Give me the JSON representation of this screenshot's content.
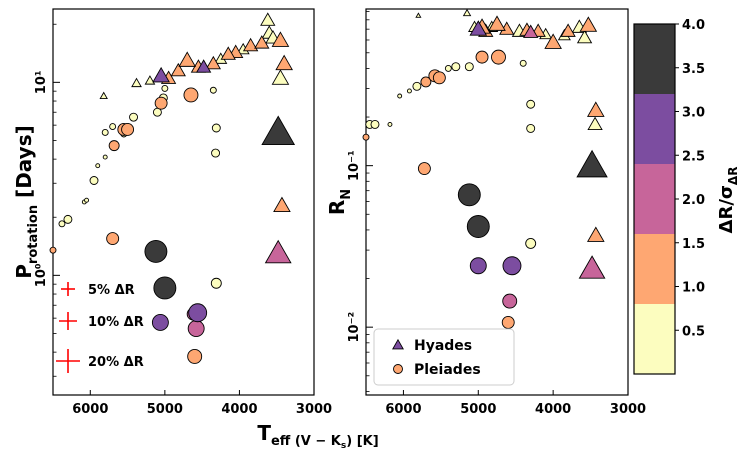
{
  "chart_data": [
    {
      "type": "scatter",
      "panel": "left",
      "xlabel": "T",
      "xlabel_sub": "eff (V − K",
      "xlabel_subsub": "s",
      "xlabel_tail": ") [K]",
      "ylabel": "P",
      "ylabel_sub": "rotation",
      "ylabel_tail": " [Days]",
      "xlim": [
        6500,
        3000
      ],
      "ylim_log10": [
        -0.62,
        1.38
      ],
      "y_scale": "log",
      "x_ticks": [
        6000,
        5000,
        4000,
        3000
      ],
      "x_tick_labels": [
        "6000",
        "5000",
        "4000",
        "3000"
      ],
      "y_ticks": [
        1,
        10
      ],
      "y_tick_labels": [
        "10⁰",
        "10¹"
      ],
      "series": [
        {
          "marker": "triangle",
          "points": [
            {
              "x": 5820,
              "y": 8.5,
              "c": 0.6,
              "s": 3
            },
            {
              "x": 5380,
              "y": 9.9,
              "c": 0.4,
              "s": 4
            },
            {
              "x": 5200,
              "y": 10.2,
              "c": 0.5,
              "s": 4
            },
            {
              "x": 5050,
              "y": 10.8,
              "c": 3.0,
              "s": 7
            },
            {
              "x": 4950,
              "y": 10.5,
              "c": 1.5,
              "s": 6
            },
            {
              "x": 4820,
              "y": 11.5,
              "c": 1.0,
              "s": 6
            },
            {
              "x": 4700,
              "y": 13.0,
              "c": 1.5,
              "s": 7
            },
            {
              "x": 4550,
              "y": 12.0,
              "c": 1.2,
              "s": 6
            },
            {
              "x": 4480,
              "y": 12.0,
              "c": 2.5,
              "s": 6
            },
            {
              "x": 4350,
              "y": 12.5,
              "c": 1.2,
              "s": 6
            },
            {
              "x": 4250,
              "y": 13.2,
              "c": 0.4,
              "s": 5
            },
            {
              "x": 4150,
              "y": 14.0,
              "c": 1.4,
              "s": 6
            },
            {
              "x": 4050,
              "y": 14.3,
              "c": 1.3,
              "s": 6
            },
            {
              "x": 3950,
              "y": 14.8,
              "c": 0.5,
              "s": 5
            },
            {
              "x": 3850,
              "y": 15.5,
              "c": 1.0,
              "s": 6
            },
            {
              "x": 3700,
              "y": 16.0,
              "c": 1.3,
              "s": 6
            },
            {
              "x": 3600,
              "y": 18.0,
              "c": 0.4,
              "s": 6
            },
            {
              "x": 3550,
              "y": 17.0,
              "c": 0.5,
              "s": 6
            },
            {
              "x": 3620,
              "y": 21.0,
              "c": 0.5,
              "s": 6
            },
            {
              "x": 3450,
              "y": 16.5,
              "c": 1.2,
              "s": 7
            },
            {
              "x": 3400,
              "y": 12.5,
              "c": 1.3,
              "s": 7
            },
            {
              "x": 3450,
              "y": 10.5,
              "c": 0.5,
              "s": 7
            },
            {
              "x": 3480,
              "y": 5.5,
              "c": 3.9,
              "s": 14
            },
            {
              "x": 3430,
              "y": 2.3,
              "c": 1.3,
              "s": 7
            },
            {
              "x": 3480,
              "y": 1.3,
              "c": 2.3,
              "s": 11
            }
          ]
        },
        {
          "marker": "circle",
          "points": [
            {
              "x": 6500,
              "y": 1.35,
              "c": 1.2,
              "s": 3
            },
            {
              "x": 6380,
              "y": 1.85,
              "c": 0.4,
              "s": 3
            },
            {
              "x": 6300,
              "y": 1.95,
              "c": 0.4,
              "s": 4
            },
            {
              "x": 6080,
              "y": 2.4,
              "c": 0.5,
              "s": 2
            },
            {
              "x": 6050,
              "y": 2.45,
              "c": 0.5,
              "s": 2
            },
            {
              "x": 5950,
              "y": 3.1,
              "c": 0.4,
              "s": 4
            },
            {
              "x": 5900,
              "y": 3.7,
              "c": 0.6,
              "s": 2
            },
            {
              "x": 5800,
              "y": 4.1,
              "c": 0.5,
              "s": 2
            },
            {
              "x": 5680,
              "y": 4.7,
              "c": 1.3,
              "s": 5
            },
            {
              "x": 5800,
              "y": 5.5,
              "c": 0.4,
              "s": 3
            },
            {
              "x": 5700,
              "y": 5.9,
              "c": 0.5,
              "s": 3
            },
            {
              "x": 5550,
              "y": 5.7,
              "c": 1.2,
              "s": 6
            },
            {
              "x": 5500,
              "y": 5.7,
              "c": 1.2,
              "s": 6
            },
            {
              "x": 5550,
              "y": 5.4,
              "c": 0.5,
              "s": 3
            },
            {
              "x": 5420,
              "y": 6.6,
              "c": 0.5,
              "s": 4
            },
            {
              "x": 5100,
              "y": 7.0,
              "c": 0.5,
              "s": 4
            },
            {
              "x": 5050,
              "y": 7.8,
              "c": 1.3,
              "s": 6
            },
            {
              "x": 5020,
              "y": 8.3,
              "c": 0.4,
              "s": 4
            },
            {
              "x": 5000,
              "y": 9.3,
              "c": 0.4,
              "s": 3
            },
            {
              "x": 4650,
              "y": 8.6,
              "c": 1.3,
              "s": 7
            },
            {
              "x": 4350,
              "y": 9.1,
              "c": 0.4,
              "s": 3
            },
            {
              "x": 4310,
              "y": 5.8,
              "c": 0.4,
              "s": 4
            },
            {
              "x": 4320,
              "y": 4.3,
              "c": 0.4,
              "s": 4
            },
            {
              "x": 5700,
              "y": 1.55,
              "c": 1.3,
              "s": 6
            },
            {
              "x": 5120,
              "y": 1.33,
              "c": 3.9,
              "s": 11
            },
            {
              "x": 5000,
              "y": 0.86,
              "c": 3.9,
              "s": 11
            },
            {
              "x": 5060,
              "y": 0.57,
              "c": 3.0,
              "s": 8
            },
            {
              "x": 4560,
              "y": 0.64,
              "c": 3.0,
              "s": 9
            },
            {
              "x": 4620,
              "y": 0.63,
              "c": 2.3,
              "s": 6
            },
            {
              "x": 4580,
              "y": 0.53,
              "c": 2.3,
              "s": 8
            },
            {
              "x": 4600,
              "y": 0.38,
              "c": 1.2,
              "s": 7
            },
            {
              "x": 4310,
              "y": 0.91,
              "c": 0.4,
              "s": 5
            }
          ]
        }
      ],
      "annotations": [
        {
          "label": "5% ΔR",
          "size": 7
        },
        {
          "label": "10% ΔR",
          "size": 9
        },
        {
          "label": "20% ΔR",
          "size": 12
        }
      ]
    },
    {
      "type": "scatter",
      "panel": "right",
      "xlim": [
        6500,
        3000
      ],
      "ylim_log10": [
        -2.42,
        -0.03
      ],
      "y_scale": "log",
      "ylabel": "R",
      "ylabel_sub": "N",
      "x_ticks": [
        6000,
        5000,
        4000,
        3000
      ],
      "x_tick_labels": [
        "6000",
        "5000",
        "4000",
        "3000"
      ],
      "y_ticks": [
        0.01,
        0.1
      ],
      "y_tick_labels": [
        "10⁻²",
        "10⁻¹"
      ],
      "legend": {
        "placement": "lower-left",
        "entries": [
          {
            "label": "Hyades",
            "marker": "triangle",
            "c": 2.7
          },
          {
            "label": "Pleiades",
            "marker": "circle",
            "c": 1.3
          }
        ]
      },
      "series": [
        {
          "name": "Hyades",
          "marker": "triangle",
          "points": [
            {
              "x": 5800,
              "y": 0.85,
              "c": 0.6,
              "s": 2
            },
            {
              "x": 5150,
              "y": 0.88,
              "c": 0.4,
              "s": 3
            },
            {
              "x": 5050,
              "y": 0.72,
              "c": 0.5,
              "s": 5
            },
            {
              "x": 5000,
              "y": 0.7,
              "c": 3.0,
              "s": 7
            },
            {
              "x": 4950,
              "y": 0.72,
              "c": 1.4,
              "s": 7
            },
            {
              "x": 4900,
              "y": 0.68,
              "c": 1.0,
              "s": 6
            },
            {
              "x": 4820,
              "y": 0.72,
              "c": 0.5,
              "s": 5
            },
            {
              "x": 4750,
              "y": 0.75,
              "c": 1.5,
              "s": 7
            },
            {
              "x": 4620,
              "y": 0.7,
              "c": 1.2,
              "s": 6
            },
            {
              "x": 4450,
              "y": 0.68,
              "c": 0.5,
              "s": 6
            },
            {
              "x": 4350,
              "y": 0.69,
              "c": 1.2,
              "s": 6
            },
            {
              "x": 4300,
              "y": 0.67,
              "c": 2.2,
              "s": 6
            },
            {
              "x": 4200,
              "y": 0.68,
              "c": 1.2,
              "s": 6
            },
            {
              "x": 4100,
              "y": 0.65,
              "c": 0.5,
              "s": 5
            },
            {
              "x": 4000,
              "y": 0.58,
              "c": 1.3,
              "s": 7
            },
            {
              "x": 3850,
              "y": 0.64,
              "c": 0.5,
              "s": 5
            },
            {
              "x": 3800,
              "y": 0.68,
              "c": 1.0,
              "s": 6
            },
            {
              "x": 3650,
              "y": 0.72,
              "c": 0.4,
              "s": 6
            },
            {
              "x": 3580,
              "y": 0.62,
              "c": 0.5,
              "s": 6
            },
            {
              "x": 3530,
              "y": 0.74,
              "c": 1.3,
              "s": 7
            },
            {
              "x": 3430,
              "y": 0.22,
              "c": 1.3,
              "s": 7
            },
            {
              "x": 3440,
              "y": 0.18,
              "c": 0.5,
              "s": 6
            },
            {
              "x": 3480,
              "y": 0.1,
              "c": 3.9,
              "s": 13
            },
            {
              "x": 3430,
              "y": 0.037,
              "c": 1.3,
              "s": 7
            },
            {
              "x": 3480,
              "y": 0.023,
              "c": 2.3,
              "s": 11
            }
          ]
        },
        {
          "name": "Pleiades",
          "marker": "circle",
          "points": [
            {
              "x": 6500,
              "y": 0.15,
              "c": 1.2,
              "s": 3
            },
            {
              "x": 6450,
              "y": 0.18,
              "c": 0.4,
              "s": 4
            },
            {
              "x": 6380,
              "y": 0.18,
              "c": 0.4,
              "s": 4
            },
            {
              "x": 6180,
              "y": 0.18,
              "c": 0.5,
              "s": 2
            },
            {
              "x": 6050,
              "y": 0.27,
              "c": 0.5,
              "s": 2
            },
            {
              "x": 5920,
              "y": 0.29,
              "c": 0.5,
              "s": 2
            },
            {
              "x": 5820,
              "y": 0.31,
              "c": 0.4,
              "s": 4
            },
            {
              "x": 5700,
              "y": 0.33,
              "c": 1.2,
              "s": 5
            },
            {
              "x": 5580,
              "y": 0.36,
              "c": 1.2,
              "s": 6
            },
            {
              "x": 5520,
              "y": 0.35,
              "c": 1.2,
              "s": 6
            },
            {
              "x": 5400,
              "y": 0.4,
              "c": 0.5,
              "s": 3
            },
            {
              "x": 5300,
              "y": 0.41,
              "c": 0.4,
              "s": 4
            },
            {
              "x": 5120,
              "y": 0.41,
              "c": 0.5,
              "s": 4
            },
            {
              "x": 4950,
              "y": 0.47,
              "c": 1.3,
              "s": 6
            },
            {
              "x": 4730,
              "y": 0.47,
              "c": 1.3,
              "s": 7
            },
            {
              "x": 4400,
              "y": 0.43,
              "c": 0.4,
              "s": 3
            },
            {
              "x": 4300,
              "y": 0.24,
              "c": 0.4,
              "s": 4
            },
            {
              "x": 4300,
              "y": 0.17,
              "c": 0.4,
              "s": 4
            },
            {
              "x": 5720,
              "y": 0.096,
              "c": 1.3,
              "s": 6
            },
            {
              "x": 5120,
              "y": 0.066,
              "c": 3.9,
              "s": 11
            },
            {
              "x": 5000,
              "y": 0.042,
              "c": 3.9,
              "s": 11
            },
            {
              "x": 5000,
              "y": 0.024,
              "c": 3.0,
              "s": 8
            },
            {
              "x": 4550,
              "y": 0.024,
              "c": 3.0,
              "s": 9
            },
            {
              "x": 4580,
              "y": 0.024,
              "c": 2.3,
              "s": 6
            },
            {
              "x": 4580,
              "y": 0.0145,
              "c": 2.3,
              "s": 7
            },
            {
              "x": 4600,
              "y": 0.0107,
              "c": 1.2,
              "s": 6
            },
            {
              "x": 4300,
              "y": 0.033,
              "c": 0.4,
              "s": 5
            }
          ]
        }
      ]
    }
  ],
  "colorbar": {
    "label": "ΔR/σ",
    "label_sub": "ΔR",
    "range": [
      0,
      4.0
    ],
    "ticks": [
      0.5,
      1.0,
      1.5,
      2.0,
      2.5,
      3.0,
      3.5,
      4.0
    ],
    "tick_labels": [
      "0.5",
      "1.0",
      "1.5",
      "2.0",
      "2.5",
      "3.0",
      "3.5",
      "4.0"
    ],
    "bins": [
      {
        "from": 0.0,
        "to": 0.8,
        "color": "#fcfdbf"
      },
      {
        "from": 0.8,
        "to": 1.6,
        "color": "#fea772"
      },
      {
        "from": 1.6,
        "to": 2.4,
        "color": "#c7659a"
      },
      {
        "from": 2.4,
        "to": 3.2,
        "color": "#7c4da0"
      },
      {
        "from": 3.2,
        "to": 4.0,
        "color": "#3a3a3a"
      }
    ]
  }
}
